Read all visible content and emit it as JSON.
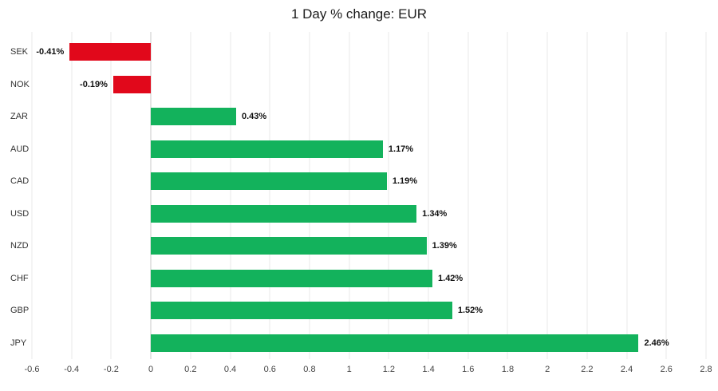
{
  "title": "1 Day % change: EUR",
  "chart_data": {
    "type": "bar",
    "orientation": "horizontal",
    "title": "1 Day % change: EUR",
    "categories": [
      "SEK",
      "NOK",
      "ZAR",
      "AUD",
      "CAD",
      "USD",
      "NZD",
      "CHF",
      "GBP",
      "JPY"
    ],
    "values": [
      -0.41,
      -0.19,
      0.43,
      1.17,
      1.19,
      1.34,
      1.39,
      1.42,
      1.52,
      2.46
    ],
    "value_labels": [
      "-0.41%",
      "-0.19%",
      "0.43%",
      "1.17%",
      "1.19%",
      "1.34%",
      "1.39%",
      "1.42%",
      "1.52%",
      "2.46%"
    ],
    "xlim": [
      -0.6,
      2.8
    ],
    "x_ticks": [
      -0.6,
      -0.4,
      -0.2,
      0,
      0.2,
      0.4,
      0.6,
      0.8,
      1,
      1.2,
      1.4,
      1.6,
      1.8,
      2,
      2.2,
      2.4,
      2.6,
      2.8
    ],
    "x_tick_labels": [
      "-0.6",
      "-0.4",
      "-0.2",
      "0",
      "0.2",
      "0.4",
      "0.6",
      "0.8",
      "1",
      "1.2",
      "1.4",
      "1.6",
      "1.8",
      "2",
      "2.2",
      "2.4",
      "2.6",
      "2.8"
    ],
    "grid": true,
    "legend": "none",
    "colors": {
      "positive": "#13b25c",
      "negative": "#e1081b"
    }
  }
}
